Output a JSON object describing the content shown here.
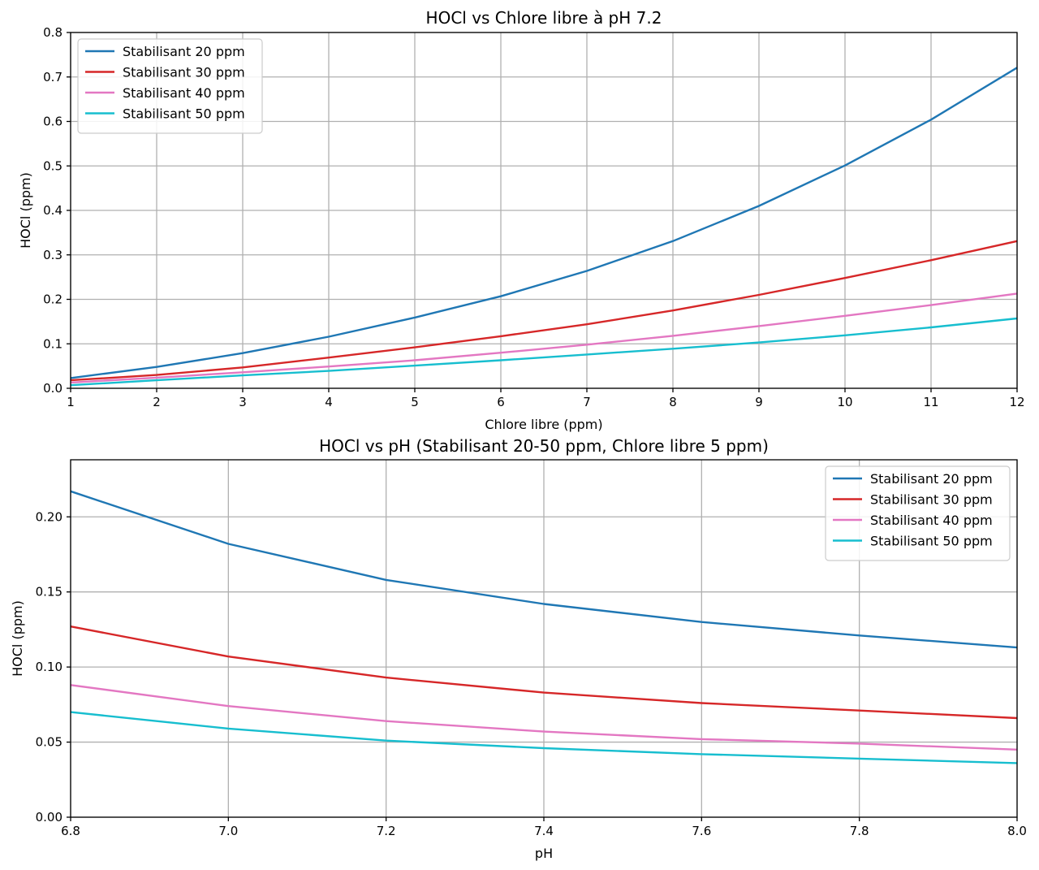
{
  "chart_data": [
    {
      "type": "line",
      "title": "HOCl vs Chlore libre à pH 7.2",
      "xlabel": "Chlore libre (ppm)",
      "ylabel": "HOCl (ppm)",
      "xlim": [
        1,
        12
      ],
      "ylim": [
        0,
        0.8
      ],
      "xticks": [
        "1",
        "2",
        "3",
        "4",
        "5",
        "6",
        "7",
        "8",
        "9",
        "10",
        "11",
        "12"
      ],
      "yticks": [
        "0.0",
        "0.1",
        "0.2",
        "0.3",
        "0.4",
        "0.5",
        "0.6",
        "0.7",
        "0.8"
      ],
      "grid": true,
      "legend_position": "top-left",
      "x": [
        1,
        2,
        3,
        4,
        5,
        6,
        7,
        8,
        9,
        10,
        11,
        12
      ],
      "series": [
        {
          "name": "Stabilisant 20 ppm",
          "color": "#1f77b4",
          "values": [
            0.023,
            0.048,
            0.079,
            0.116,
            0.159,
            0.207,
            0.264,
            0.331,
            0.41,
            0.501,
            0.604,
            0.721
          ]
        },
        {
          "name": "Stabilisant 30 ppm",
          "color": "#d62728",
          "values": [
            0.018,
            0.03,
            0.047,
            0.069,
            0.092,
            0.117,
            0.144,
            0.175,
            0.21,
            0.248,
            0.288,
            0.331
          ]
        },
        {
          "name": "Stabilisant 40 ppm",
          "color": "#e377c2",
          "values": [
            0.013,
            0.024,
            0.036,
            0.049,
            0.063,
            0.08,
            0.098,
            0.118,
            0.14,
            0.163,
            0.187,
            0.213
          ]
        },
        {
          "name": "Stabilisant 50 ppm",
          "color": "#17becf",
          "values": [
            0.007,
            0.018,
            0.029,
            0.039,
            0.051,
            0.063,
            0.076,
            0.089,
            0.103,
            0.119,
            0.137,
            0.157
          ]
        }
      ]
    },
    {
      "type": "line",
      "title": "HOCl vs pH (Stabilisant 20-50 ppm, Chlore libre 5 ppm)",
      "xlabel": "pH",
      "ylabel": "HOCl (ppm)",
      "xlim": [
        6.8,
        8.0
      ],
      "ylim": [
        0,
        0.238
      ],
      "xticks": [
        "6.8",
        "7.0",
        "7.2",
        "7.4",
        "7.6",
        "7.8",
        "8.0"
      ],
      "yticks": [
        "0.00",
        "0.05",
        "0.10",
        "0.15",
        "0.20"
      ],
      "grid": true,
      "legend_position": "top-right",
      "x": [
        6.8,
        7.0,
        7.2,
        7.4,
        7.6,
        7.8,
        8.0
      ],
      "series": [
        {
          "name": "Stabilisant 20 ppm",
          "color": "#1f77b4",
          "values": [
            0.217,
            0.182,
            0.158,
            0.142,
            0.13,
            0.121,
            0.113
          ]
        },
        {
          "name": "Stabilisant 30 ppm",
          "color": "#d62728",
          "values": [
            0.127,
            0.107,
            0.093,
            0.083,
            0.076,
            0.071,
            0.066
          ]
        },
        {
          "name": "Stabilisant 40 ppm",
          "color": "#e377c2",
          "values": [
            0.088,
            0.074,
            0.064,
            0.057,
            0.052,
            0.049,
            0.045
          ]
        },
        {
          "name": "Stabilisant 50 ppm",
          "color": "#17becf",
          "values": [
            0.07,
            0.059,
            0.051,
            0.046,
            0.042,
            0.039,
            0.036
          ]
        }
      ]
    }
  ]
}
